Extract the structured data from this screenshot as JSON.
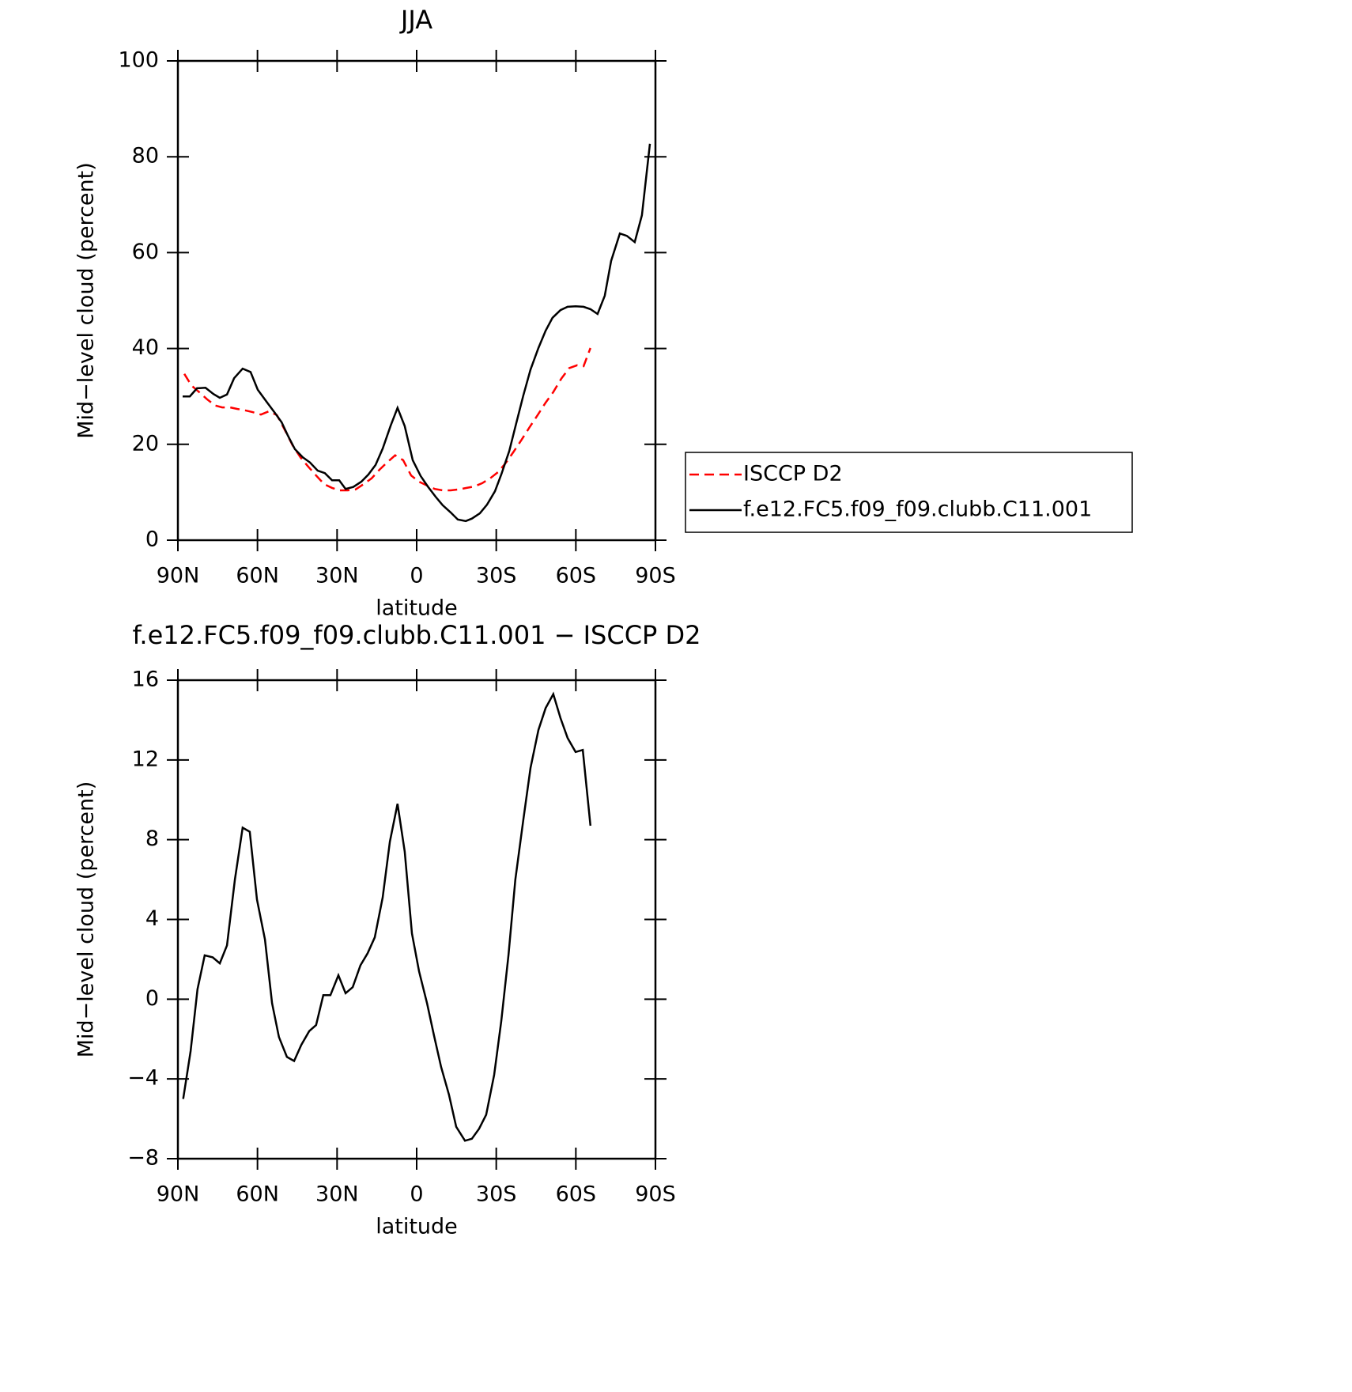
{
  "chart_data": [
    {
      "type": "line",
      "title": "JJA",
      "x_label": "latitude",
      "y_label": "Mid−level cloud (percent)",
      "xlim": [
        90,
        -90
      ],
      "ylim": [
        0,
        100
      ],
      "xticks": [
        {
          "value": 90,
          "label": "90N"
        },
        {
          "value": 60,
          "label": "60N"
        },
        {
          "value": 30,
          "label": "30N"
        },
        0,
        {
          "value": -30,
          "label": "30S"
        },
        {
          "value": -60,
          "label": "60S"
        },
        {
          "value": -90,
          "label": "90S"
        }
      ],
      "yticks": [
        0,
        20,
        40,
        60,
        80,
        100
      ],
      "legend": "right",
      "series": [
        {
          "name": "ISCCP D2",
          "color": "#ff0000",
          "dash": true,
          "x": [
            87.6,
            84.9,
            82.0,
            79.0,
            76.0,
            73.3,
            70.3,
            67.7,
            64.7,
            61.7,
            58.7,
            55.7,
            52.7,
            49.8,
            46.8,
            43.8,
            40.8,
            37.9,
            34.9,
            31.9,
            29.0,
            26.0,
            23.0,
            20.0,
            17.0,
            14.0,
            11.0,
            8.1,
            5.1,
            2.1,
            -0.9,
            -3.9,
            -6.8,
            -9.8,
            -12.8,
            -15.8,
            -18.8,
            -21.7,
            -24.7,
            -27.7,
            -30.7,
            -33.7,
            -36.6,
            -39.6,
            -42.6,
            -45.6,
            -48.6,
            -51.5,
            -54.5,
            -57.5,
            -60.5,
            -62.9,
            -65.5
          ],
          "values": [
            34.7,
            32.3,
            30.9,
            29.4,
            28.1,
            27.7,
            27.7,
            27.4,
            27.1,
            26.7,
            26.2,
            26.9,
            26.1,
            23.1,
            19.8,
            17.3,
            15.3,
            13.5,
            11.7,
            10.9,
            10.4,
            10.4,
            10.6,
            11.7,
            12.9,
            14.7,
            16.3,
            17.7,
            16.7,
            13.5,
            12.2,
            11.4,
            10.7,
            10.4,
            10.4,
            10.6,
            10.9,
            11.2,
            11.9,
            12.9,
            14.2,
            16.2,
            18.5,
            21.0,
            23.6,
            26.1,
            28.7,
            30.9,
            33.7,
            35.9,
            36.5,
            36.3,
            40.1
          ]
        },
        {
          "name": "f.e12.FC5.f09_f09.clubb.C11.001",
          "color": "#000000",
          "dash": false,
          "x": [
            88.2,
            85.5,
            82.8,
            79.6,
            76.6,
            74.2,
            71.5,
            68.8,
            65.6,
            62.6,
            59.9,
            56.6,
            53.6,
            50.9,
            48.6,
            45.9,
            42.9,
            40.2,
            37.3,
            34.6,
            31.9,
            29.2,
            26.8,
            23.9,
            20.9,
            18.2,
            15.5,
            12.8,
            9.8,
            7.2,
            4.5,
            1.5,
            -1.5,
            -4.2,
            -7.1,
            -9.8,
            -12.8,
            -15.5,
            -18.5,
            -20.8,
            -23.8,
            -26.5,
            -29.5,
            -31.9,
            -34.9,
            -37.5,
            -40.2,
            -42.9,
            -45.9,
            -48.6,
            -51.2,
            -54.2,
            -56.9,
            -59.9,
            -62.9,
            -65.5,
            -68.2,
            -70.9,
            -73.3,
            -76.6,
            -79.2,
            -82.2,
            -84.9,
            -87.9
          ],
          "values": [
            30.0,
            30.0,
            31.7,
            31.8,
            30.5,
            29.7,
            30.4,
            33.8,
            35.8,
            35.1,
            31.4,
            28.9,
            26.7,
            24.6,
            21.9,
            19.0,
            17.3,
            16.2,
            14.5,
            14.0,
            12.5,
            12.5,
            10.7,
            11.1,
            12.2,
            13.7,
            15.7,
            19.1,
            23.9,
            27.6,
            23.8,
            16.7,
            13.4,
            11.2,
            9.1,
            7.3,
            5.8,
            4.3,
            4.0,
            4.5,
            5.6,
            7.4,
            10.2,
            13.7,
            18.6,
            24.3,
            30.2,
            35.6,
            40.1,
            43.7,
            46.4,
            48.0,
            48.7,
            48.8,
            48.7,
            48.2,
            47.2,
            51.0,
            58.3,
            64.0,
            63.5,
            62.2,
            67.8,
            82.7
          ]
        }
      ]
    },
    {
      "type": "line",
      "title": "f.e12.FC5.f09_f09.clubb.C11.001 − ISCCP D2",
      "x_label": "latitude",
      "y_label": "Mid−level cloud (percent)",
      "xlim": [
        90,
        -90
      ],
      "ylim": [
        -8,
        16
      ],
      "xticks": [
        {
          "value": 90,
          "label": "90N"
        },
        {
          "value": 60,
          "label": "60N"
        },
        {
          "value": 30,
          "label": "30N"
        },
        0,
        {
          "value": -30,
          "label": "30S"
        },
        {
          "value": -60,
          "label": "60S"
        },
        {
          "value": -90,
          "label": "90S"
        }
      ],
      "yticks": [
        {
          "value": -8,
          "label": "−8"
        },
        {
          "value": -4,
          "label": "−4"
        },
        0,
        4,
        8,
        12,
        16
      ],
      "series": [
        {
          "color": "#000000",
          "dash": false,
          "x": [
            88.0,
            85.2,
            82.6,
            79.9,
            76.9,
            74.2,
            71.5,
            68.5,
            65.6,
            62.9,
            60.2,
            57.2,
            54.5,
            51.9,
            48.9,
            46.2,
            43.5,
            40.5,
            37.9,
            35.2,
            32.5,
            29.5,
            26.8,
            24.1,
            21.2,
            18.5,
            15.8,
            12.8,
            10.1,
            7.2,
            4.5,
            1.8,
            -0.9,
            -3.9,
            -6.5,
            -9.2,
            -12.2,
            -14.9,
            -18.2,
            -20.8,
            -23.5,
            -26.2,
            -29.2,
            -31.9,
            -34.6,
            -37.2,
            -40.2,
            -42.9,
            -45.9,
            -48.6,
            -51.5,
            -54.2,
            -56.9,
            -59.9,
            -62.6,
            -65.5
          ],
          "values": [
            -5.0,
            -2.6,
            0.5,
            2.2,
            2.1,
            1.8,
            2.7,
            6.0,
            8.6,
            8.4,
            5.0,
            3.0,
            -0.2,
            -1.9,
            -2.9,
            -3.1,
            -2.3,
            -1.6,
            -1.3,
            0.2,
            0.2,
            1.2,
            0.3,
            0.6,
            1.7,
            2.3,
            3.1,
            5.1,
            7.9,
            9.8,
            7.4,
            3.3,
            1.4,
            -0.2,
            -1.8,
            -3.4,
            -4.8,
            -6.4,
            -7.1,
            -7.0,
            -6.5,
            -5.8,
            -3.8,
            -1.1,
            2.2,
            6.0,
            9.0,
            11.6,
            13.5,
            14.6,
            15.3,
            14.1,
            13.1,
            12.4,
            12.5,
            8.7
          ]
        }
      ]
    }
  ]
}
